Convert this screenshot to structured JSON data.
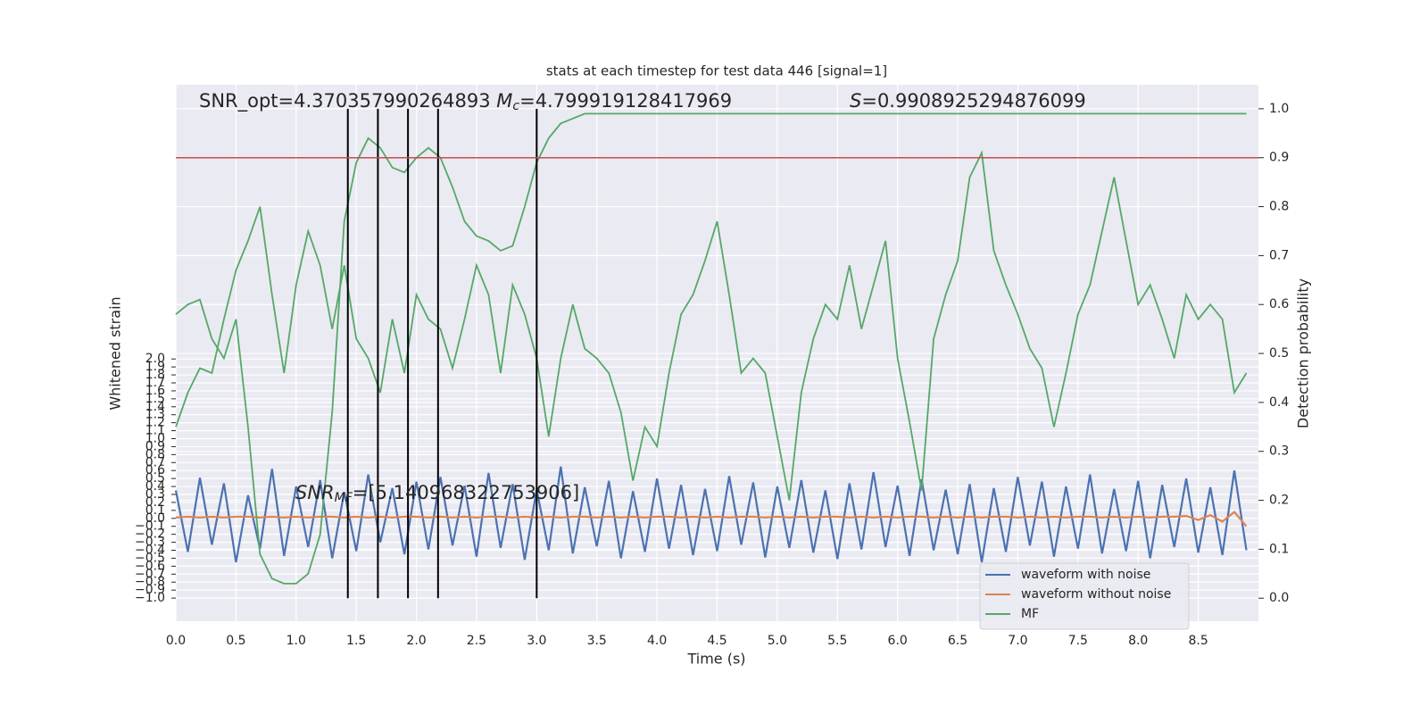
{
  "chart_data": {
    "type": "line",
    "title": "stats at each timestep for test data 446 [signal=1]",
    "xlabel": "Time (s)",
    "ylabel": "Whitened strain",
    "y2label": "Detection probability",
    "annotations": [
      {
        "parts": [
          "SNR_opt=4.370357990264893 ",
          "M",
          "c",
          "=4.799919128417969"
        ]
      },
      {
        "parts": [
          "S",
          "=0.9908925294876099"
        ]
      },
      {
        "parts": [
          "SNR",
          "MF",
          "=[5.140968322753906]"
        ]
      }
    ],
    "xlim": [
      0,
      9.0
    ],
    "xticks": [
      {
        "value": 0,
        "label": "0.0"
      },
      0.5,
      {
        "value": 1,
        "label": "1.0"
      },
      1.5,
      {
        "value": 2,
        "label": "2.0"
      },
      2.5,
      {
        "value": 3,
        "label": "3.0"
      },
      3.5,
      {
        "value": 4,
        "label": "4.0"
      },
      4.5,
      {
        "value": 5,
        "label": "5.0"
      },
      5.5,
      {
        "value": 6,
        "label": "6.0"
      },
      6.5,
      {
        "value": 7,
        "label": "7.0"
      },
      7.5,
      {
        "value": 8,
        "label": "8.0"
      },
      8.5
    ],
    "ylim": [
      -1.29,
      5.44
    ],
    "yticks": [
      {
        "value": -1,
        "label": "−1.0"
      },
      {
        "value": -0.9,
        "label": "−0.9"
      },
      {
        "value": -0.8,
        "label": "−0.8"
      },
      {
        "value": -0.7,
        "label": "−0.7"
      },
      {
        "value": -0.6,
        "label": "−0.6"
      },
      {
        "value": -0.5,
        "label": "−0.5"
      },
      {
        "value": -0.4,
        "label": "−0.4"
      },
      {
        "value": -0.3,
        "label": "−0.3"
      },
      {
        "value": -0.2,
        "label": "−0.2"
      },
      {
        "value": -0.1,
        "label": "−0.1"
      },
      {
        "value": 0,
        "label": "0.0"
      },
      0.1,
      0.2,
      0.3,
      0.4,
      0.5,
      0.6,
      0.7,
      0.8,
      0.9,
      {
        "value": 1,
        "label": "1.0"
      },
      1.1,
      1.2,
      1.3,
      1.4,
      1.5,
      1.6,
      1.7,
      1.8,
      1.9,
      {
        "value": 2,
        "label": "2.0"
      }
    ],
    "y2lim": [
      -0.047,
      1.049
    ],
    "y2ticks": [
      {
        "value": 0,
        "label": "0.0"
      },
      0.1,
      0.2,
      0.3,
      0.4,
      0.5,
      0.6,
      0.7,
      0.8,
      0.9,
      {
        "value": 1,
        "label": "1.0"
      }
    ],
    "grid": true,
    "legend": "lower right",
    "vlines": [
      1.43,
      1.68,
      1.93,
      2.18,
      3.0
    ],
    "vline_color": "#000000",
    "hline": 0.9,
    "hline_color": "#c44e52",
    "x": [
      0.0,
      0.1,
      0.2,
      0.3,
      0.4,
      0.5,
      0.6,
      0.7,
      0.8,
      0.9,
      1.0,
      1.1,
      1.2,
      1.3,
      1.4,
      1.5,
      1.6,
      1.7,
      1.8,
      1.9,
      2.0,
      2.1,
      2.2,
      2.3,
      2.4,
      2.5,
      2.6,
      2.7,
      2.8,
      2.9,
      3.0,
      3.1,
      3.2,
      3.3,
      3.4,
      3.5,
      3.6,
      3.7,
      3.8,
      3.9,
      4.0,
      4.1,
      4.2,
      4.3,
      4.4,
      4.5,
      4.6,
      4.7,
      4.8,
      4.9,
      5.0,
      5.1,
      5.2,
      5.3,
      5.4,
      5.5,
      5.6,
      5.7,
      5.8,
      5.9,
      6.0,
      6.1,
      6.2,
      6.3,
      6.4,
      6.5,
      6.6,
      6.7,
      6.8,
      6.9,
      7.0,
      7.1,
      7.2,
      7.3,
      7.4,
      7.5,
      7.6,
      7.7,
      7.8,
      7.9,
      8.0,
      8.1,
      8.2,
      8.3,
      8.4,
      8.5,
      8.6,
      8.7,
      8.8,
      8.9
    ],
    "series": [
      {
        "name": "waveform with noise",
        "color": "#4c72b0",
        "axis": "y",
        "values": [
          0.35,
          -0.42,
          0.51,
          -0.33,
          0.44,
          -0.55,
          0.29,
          -0.38,
          0.62,
          -0.47,
          0.4,
          -0.36,
          0.48,
          -0.5,
          0.33,
          -0.41,
          0.55,
          -0.3,
          0.38,
          -0.45,
          0.46,
          -0.39,
          0.52,
          -0.34,
          0.41,
          -0.48,
          0.57,
          -0.37,
          0.43,
          -0.52,
          0.36,
          -0.4,
          0.65,
          -0.44,
          0.39,
          -0.35,
          0.47,
          -0.5,
          0.34,
          -0.42,
          0.5,
          -0.38,
          0.42,
          -0.46,
          0.37,
          -0.41,
          0.53,
          -0.33,
          0.45,
          -0.49,
          0.4,
          -0.37,
          0.48,
          -0.43,
          0.35,
          -0.51,
          0.44,
          -0.39,
          0.58,
          -0.36,
          0.41,
          -0.47,
          0.49,
          -0.4,
          0.36,
          -0.45,
          0.43,
          -0.55,
          0.38,
          -0.42,
          0.52,
          -0.34,
          0.46,
          -0.48,
          0.4,
          -0.38,
          0.55,
          -0.44,
          0.37,
          -0.41,
          0.47,
          -0.5,
          0.42,
          -0.36,
          0.5,
          -0.43,
          0.39,
          -0.46,
          0.6,
          -0.4
        ]
      },
      {
        "name": "waveform without noise",
        "color": "#dd8452",
        "axis": "y",
        "values": [
          0.01,
          0.02,
          0.01,
          0.02,
          0.01,
          0.02,
          0.02,
          0.01,
          0.02,
          0.01,
          0.02,
          0.01,
          0.02,
          0.02,
          0.01,
          0.02,
          0.01,
          0.02,
          0.01,
          0.02,
          0.02,
          0.01,
          0.02,
          0.01,
          0.02,
          0.01,
          0.02,
          0.02,
          0.01,
          0.02,
          0.01,
          0.02,
          0.01,
          0.02,
          0.02,
          0.01,
          0.02,
          0.01,
          0.02,
          0.01,
          0.02,
          0.02,
          0.01,
          0.02,
          0.01,
          0.02,
          0.01,
          0.02,
          0.02,
          0.01,
          0.02,
          0.01,
          0.02,
          0.01,
          0.02,
          0.02,
          0.01,
          0.02,
          0.01,
          0.02,
          0.01,
          0.02,
          0.02,
          0.01,
          0.02,
          0.01,
          0.02,
          0.01,
          0.02,
          0.02,
          0.01,
          0.02,
          0.01,
          0.02,
          0.01,
          0.02,
          0.02,
          0.01,
          0.02,
          0.01,
          0.02,
          0.01,
          0.02,
          0.02,
          0.03,
          -0.02,
          0.04,
          -0.04,
          0.08,
          -0.1
        ]
      },
      {
        "name": "MF",
        "color": "#55a868",
        "axis": "y2",
        "values": [
          0.35,
          0.42,
          0.47,
          0.46,
          0.57,
          0.67,
          0.73,
          0.8,
          0.62,
          0.46,
          0.64,
          0.75,
          0.68,
          0.55,
          0.68,
          0.53,
          0.49,
          0.42,
          0.57,
          0.46,
          0.62,
          0.57,
          0.55,
          0.47,
          0.57,
          0.68,
          0.62,
          0.46,
          0.64,
          0.58,
          0.49,
          0.33,
          0.49,
          0.6,
          0.51,
          0.49,
          0.46,
          0.38,
          0.24,
          0.35,
          0.31,
          0.46,
          0.58,
          0.62,
          0.69,
          0.77,
          0.62,
          0.46,
          0.49,
          0.46,
          0.33,
          0.2,
          0.42,
          0.53,
          0.6,
          0.57,
          0.68,
          0.55,
          0.64,
          0.73,
          0.49,
          0.36,
          0.22,
          0.53,
          0.62,
          0.69,
          0.86,
          0.91,
          0.71,
          0.64,
          0.58,
          0.51,
          0.47,
          0.35,
          0.46,
          0.58,
          0.64,
          0.75,
          0.86,
          0.73,
          0.6,
          0.64,
          0.57,
          0.49,
          0.62,
          0.57,
          0.6,
          0.57,
          0.42,
          0.46
        ]
      },
      {
        "color": "#55a868",
        "axis": "y2",
        "values": [
          0.58,
          0.6,
          0.61,
          0.53,
          0.49,
          0.57,
          0.35,
          0.09,
          0.04,
          0.03,
          0.03,
          0.05,
          0.13,
          0.38,
          0.77,
          0.89,
          0.94,
          0.92,
          0.88,
          0.87,
          0.9,
          0.92,
          0.9,
          0.84,
          0.77,
          0.74,
          0.73,
          0.71,
          0.72,
          0.8,
          0.89,
          0.94,
          0.97,
          0.98,
          0.99,
          0.99,
          0.99,
          0.99,
          0.99,
          0.99,
          0.99,
          0.99,
          0.99,
          0.99,
          0.99,
          0.99,
          0.99,
          0.99,
          0.99,
          0.99,
          0.99,
          0.99,
          0.99,
          0.99,
          0.99,
          0.99,
          0.99,
          0.99,
          0.99,
          0.99,
          0.99,
          0.99,
          0.99,
          0.99,
          0.99,
          0.99,
          0.99,
          0.99,
          0.99,
          0.99,
          0.99,
          0.99,
          0.99,
          0.99,
          0.99,
          0.99,
          0.99,
          0.99,
          0.99,
          0.99,
          0.99,
          0.99,
          0.99,
          0.99,
          0.99,
          0.99,
          0.99,
          0.99,
          0.99,
          0.99
        ]
      }
    ]
  }
}
